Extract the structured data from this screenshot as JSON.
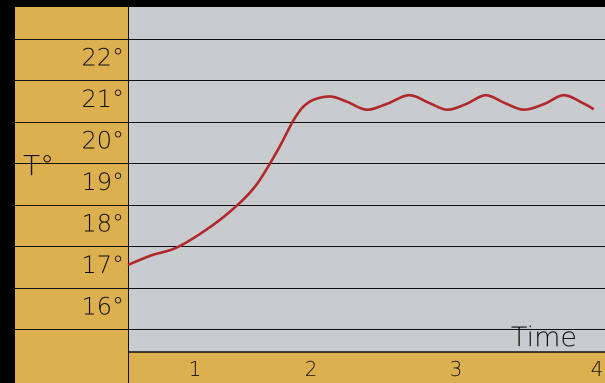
{
  "chart_data": {
    "type": "line",
    "title": "",
    "ylabel": "T°",
    "xlabel": "Time",
    "y_ticks": [
      "16°",
      "17°",
      "18°",
      "19°",
      "20°",
      "21°",
      "22°"
    ],
    "x_ticks": [
      "1",
      "2",
      "3",
      "4"
    ],
    "xlim": [
      0,
      4
    ],
    "ylim": [
      14.8,
      23.0
    ],
    "grid": "horizontal",
    "series": [
      {
        "name": "",
        "color": "#b0282c",
        "points": [
          [
            0.0,
            17.05
          ],
          [
            0.17,
            17.28
          ],
          [
            0.35,
            17.46
          ],
          [
            0.55,
            17.85
          ],
          [
            0.75,
            18.35
          ],
          [
            0.93,
            18.95
          ],
          [
            1.09,
            19.8
          ],
          [
            1.22,
            20.6
          ],
          [
            1.32,
            20.97
          ],
          [
            1.47,
            21.11
          ],
          [
            1.6,
            20.98
          ],
          [
            1.74,
            20.79
          ],
          [
            1.89,
            20.93
          ],
          [
            2.05,
            21.14
          ],
          [
            2.2,
            20.95
          ],
          [
            2.33,
            20.79
          ],
          [
            2.47,
            20.93
          ],
          [
            2.61,
            21.14
          ],
          [
            2.75,
            20.95
          ],
          [
            2.89,
            20.79
          ],
          [
            3.04,
            20.93
          ],
          [
            3.18,
            21.14
          ],
          [
            3.32,
            20.95
          ],
          [
            3.4,
            20.8
          ]
        ]
      }
    ]
  },
  "colors": {
    "background": "#000000",
    "panel": "#dcb04e",
    "plot": "#c9cccf",
    "grid": "#111111",
    "line": "#b0282c"
  }
}
